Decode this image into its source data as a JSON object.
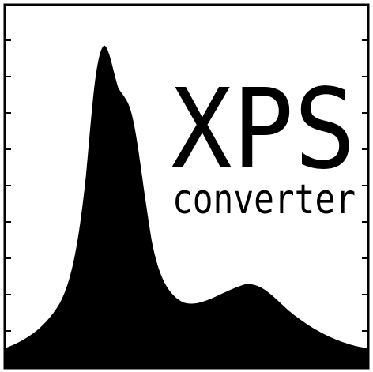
{
  "logo": {
    "title": "XPS",
    "subtitle": "converter",
    "colors": {
      "background": "#ffffff",
      "ink": "#000000"
    },
    "icon": "xps-spectrum-logo"
  }
}
